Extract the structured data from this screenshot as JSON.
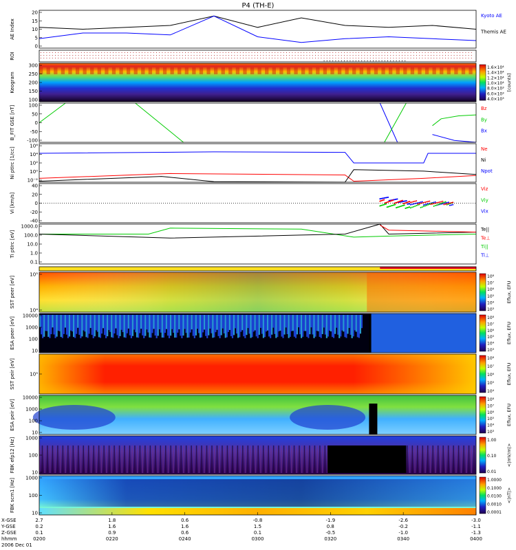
{
  "title": "P4 (TH-E)",
  "colors": {
    "red": "#ff0000",
    "green": "#00cc00",
    "blue": "#0000ff",
    "black": "#000000",
    "panel_frame": "#000000"
  },
  "time_axis": {
    "rows": [
      {
        "label": "X-GSE",
        "values": [
          "2.7",
          "1.8",
          "0.6",
          "-0.8",
          "-1.9",
          "-2.6",
          "-3.0"
        ]
      },
      {
        "label": "Y-GSE",
        "values": [
          "0.2",
          "1.6",
          "1.6",
          "1.5",
          "0.8",
          "-0.2",
          "-1.1"
        ]
      },
      {
        "label": "Z-GSE",
        "values": [
          "0.1",
          "0.9",
          "0.6",
          "0.1",
          "-0.5",
          "-1.0",
          "-1.3"
        ]
      },
      {
        "label": "hhmm",
        "values": [
          "0200",
          "0220",
          "0240",
          "0300",
          "0320",
          "0340",
          "0400"
        ]
      }
    ],
    "date": "2006 Dec 01"
  },
  "panels": [
    {
      "id": "ae",
      "ylabel": "AE Index",
      "yticks": [
        "20",
        "15",
        "10",
        "5",
        "0"
      ],
      "legend": [
        {
          "text": "Kyoto AE",
          "color": "#0000ff"
        },
        {
          "text": "Themis AE",
          "color": "#000000"
        }
      ]
    },
    {
      "id": "roi",
      "ylabel": "ROI",
      "yticks": []
    },
    {
      "id": "keogram",
      "ylabel": "Keogram",
      "yticks": [
        "300",
        "250",
        "200",
        "150",
        "100"
      ],
      "colorbar": {
        "labels": [
          "1.6×10⁴",
          "1.4×10⁴",
          "1.2×10⁴",
          "1.0×10⁴",
          "8.0×10³",
          "6.0×10³",
          "4.0×10³"
        ],
        "unit": "[counts]"
      }
    },
    {
      "id": "bfield",
      "ylabel": "B_FIT GSE [nT]",
      "yticks": [
        "100",
        "50",
        "0",
        "-50",
        "-100"
      ],
      "legend": [
        {
          "text": "Bz",
          "color": "#ff0000"
        },
        {
          "text": "By",
          "color": "#00cc00"
        },
        {
          "text": "Bx",
          "color": "#0000ff"
        }
      ]
    },
    {
      "id": "density",
      "ylabel": "Ni ptIrc [1/cc]",
      "yticks": [
        "10⁶",
        "10⁴",
        "10²",
        "10⁰",
        "10⁻²"
      ],
      "legend": [
        {
          "text": "Ne",
          "color": "#ff0000"
        },
        {
          "text": "Ni",
          "color": "#000000"
        },
        {
          "text": "Npot",
          "color": "#0000ff"
        }
      ]
    },
    {
      "id": "velocity",
      "ylabel": "Vi [km/s]",
      "yticks": [
        "40",
        "20",
        "0",
        "-20",
        "-40"
      ],
      "legend": [
        {
          "text": "Viz",
          "color": "#ff0000"
        },
        {
          "text": "Viy",
          "color": "#00cc00"
        },
        {
          "text": "Vix",
          "color": "#0000ff"
        }
      ]
    },
    {
      "id": "temp",
      "ylabel": "Ti ptIrc [eV]",
      "yticks": [
        "1000.0",
        "100.0",
        "10.0",
        "1.0",
        "0.1"
      ],
      "legend": [
        {
          "text": "Te||",
          "color": "#000000"
        },
        {
          "text": "Te⊥",
          "color": "#ff0000"
        },
        {
          "text": "Ti||",
          "color": "#00cc00"
        },
        {
          "text": "Ti⊥",
          "color": "#0000ff"
        }
      ]
    },
    {
      "id": "mode_bar",
      "ylabel": "",
      "yticks": []
    },
    {
      "id": "sst_e",
      "ylabel": "SST peer [eV]",
      "yticks": [
        "10⁵",
        "10⁴"
      ],
      "colorbar": {
        "labels": [
          "10⁸",
          "10⁷",
          "10⁶",
          "10⁵",
          "10⁴",
          "10³"
        ],
        "unit": "Eflux, EFU"
      }
    },
    {
      "id": "esa_e",
      "ylabel": "ESA peer [eV]",
      "yticks": [
        "10000",
        "1000",
        "100",
        "10"
      ],
      "colorbar": {
        "labels": [
          "10⁸",
          "10⁷",
          "10⁶",
          "10⁵",
          "10⁴",
          "10³"
        ],
        "unit": "Eflux, EFU"
      }
    },
    {
      "id": "sst_i",
      "ylabel": "SST peir [eV]",
      "yticks": [
        "10⁵"
      ],
      "colorbar": {
        "labels": [
          "10⁸",
          "10⁷",
          "10⁶",
          "10⁵",
          "10⁴"
        ],
        "unit": "Eflux, EFU"
      }
    },
    {
      "id": "esa_i",
      "ylabel": "ESA peir [eV]",
      "yticks": [
        "10000",
        "1000",
        "100",
        "10"
      ],
      "colorbar": {
        "labels": [
          "10⁸",
          "10⁷",
          "10⁶",
          "10⁵",
          "10⁴",
          "10³"
        ],
        "unit": "Eflux, EFU"
      }
    },
    {
      "id": "fbk_e",
      "ylabel": "FBK efp12 [Hz]",
      "yticks": [
        "1000",
        "100",
        "10"
      ],
      "colorbar": {
        "labels": [
          "1.00",
          "0.10",
          "0.01"
        ],
        "unit": "<|mV/m|>"
      }
    },
    {
      "id": "fbk_b",
      "ylabel": "FBK scm1 [Hz]",
      "yticks": [
        "1000",
        "100",
        "10"
      ],
      "colorbar": {
        "labels": [
          "1.0000",
          "0.1000",
          "0.0100",
          "0.0010",
          "0.0001"
        ],
        "unit": "<|nT|>"
      }
    }
  ],
  "chart_data": [
    {
      "type": "line",
      "panel": "ae",
      "ylabel": "AE Index",
      "ylim": [
        0,
        20
      ],
      "x": [
        0,
        10,
        20,
        30,
        40,
        50,
        60,
        70,
        80,
        90,
        100
      ],
      "series": [
        {
          "name": "Themis AE",
          "color": "#000000",
          "values": [
            11,
            10,
            11,
            12,
            17,
            11,
            16,
            12,
            11,
            12,
            10
          ]
        },
        {
          "name": "Kyoto AE",
          "color": "#0000ff",
          "values": [
            5,
            8,
            8,
            7,
            17,
            6,
            3,
            5,
            6,
            5,
            4
          ]
        }
      ]
    },
    {
      "type": "line",
      "panel": "bfield",
      "ylabel": "B_FIT GSE [nT]",
      "ylim": [
        -100,
        100
      ],
      "series": [
        {
          "name": "By",
          "color": "#00cc00",
          "x": [
            0,
            6
          ],
          "values": [
            0,
            100
          ]
        },
        {
          "name": "By",
          "color": "#00cc00",
          "x": [
            22,
            33
          ],
          "values": [
            100,
            -100
          ]
        },
        {
          "name": "Bx",
          "color": "#0000ff",
          "x": [
            78,
            82
          ],
          "values": [
            100,
            -100
          ]
        },
        {
          "name": "By",
          "color": "#00cc00",
          "x": [
            79,
            84
          ],
          "values": [
            -100,
            100
          ]
        },
        {
          "name": "By",
          "color": "#00cc00",
          "x": [
            90,
            92,
            96,
            100
          ],
          "values": [
            -15,
            20,
            35,
            40
          ]
        },
        {
          "name": "Bx",
          "color": "#0000ff",
          "x": [
            90,
            95,
            100
          ],
          "values": [
            -60,
            -90,
            -100
          ]
        }
      ]
    },
    {
      "type": "line",
      "panel": "density",
      "ylabel": "Ni ptIrc [1/cc]",
      "series": [
        {
          "name": "Npot",
          "color": "#0000ff",
          "x": [
            0,
            40,
            70,
            72,
            88,
            89,
            100
          ],
          "values": [
            4,
            4.3,
            4.2,
            2.0,
            2.0,
            4.0,
            4.0
          ]
        },
        {
          "name": "Ne",
          "color": "#ff0000",
          "x": [
            0,
            30,
            70,
            72,
            88,
            100
          ],
          "values": [
            -1.2,
            -0.2,
            -0.5,
            -1.8,
            -1.2,
            -0.6
          ]
        },
        {
          "name": "Ni",
          "color": "#000000",
          "x": [
            0,
            28,
            40,
            70,
            72,
            88,
            100
          ],
          "values": [
            -1.8,
            -0.8,
            -1.9,
            -2.0,
            0.6,
            0.3,
            -0.4
          ]
        }
      ]
    },
    {
      "type": "scatter",
      "panel": "velocity",
      "ylabel": "Vi [km/s]",
      "ylim": [
        -50,
        50
      ],
      "series": [
        {
          "name": "Vix",
          "color": "#0000ff",
          "x": [
            78,
            85,
            95
          ],
          "values": [
            15,
            0,
            -2
          ]
        },
        {
          "name": "Viy",
          "color": "#00cc00",
          "x": [
            78,
            85,
            95
          ],
          "values": [
            -5,
            -10,
            2
          ]
        },
        {
          "name": "Viz",
          "color": "#ff0000",
          "x": [
            78,
            85,
            95
          ],
          "values": [
            5,
            2,
            0
          ]
        }
      ]
    },
    {
      "type": "line",
      "panel": "temp",
      "ylabel": "Ti ptIrc [eV]",
      "series": [
        {
          "name": "Ti||",
          "color": "#00cc00",
          "x": [
            0,
            25,
            30,
            60,
            72,
            80,
            100
          ],
          "values": [
            2.0,
            2.0,
            2.6,
            2.5,
            1.7,
            1.8,
            2.0
          ]
        },
        {
          "name": "Te||",
          "color": "#000000",
          "x": [
            0,
            30,
            60,
            70,
            78,
            80,
            100
          ],
          "values": [
            2.0,
            1.6,
            1.9,
            2.0,
            3.0,
            2.0,
            2.2
          ]
        },
        {
          "name": "Te⊥",
          "color": "#ff0000",
          "x": [
            78,
            80,
            100
          ],
          "values": [
            2.9,
            2.4,
            2.2
          ]
        }
      ]
    },
    {
      "type": "heatmap",
      "panel": "keogram",
      "ylabel": "Keogram",
      "ylim": [
        100,
        300
      ]
    },
    {
      "type": "heatmap",
      "panel": "sst_e"
    },
    {
      "type": "heatmap",
      "panel": "esa_e"
    },
    {
      "type": "heatmap",
      "panel": "sst_i"
    },
    {
      "type": "heatmap",
      "panel": "esa_i"
    },
    {
      "type": "heatmap",
      "panel": "fbk_e"
    },
    {
      "type": "heatmap",
      "panel": "fbk_b"
    }
  ]
}
